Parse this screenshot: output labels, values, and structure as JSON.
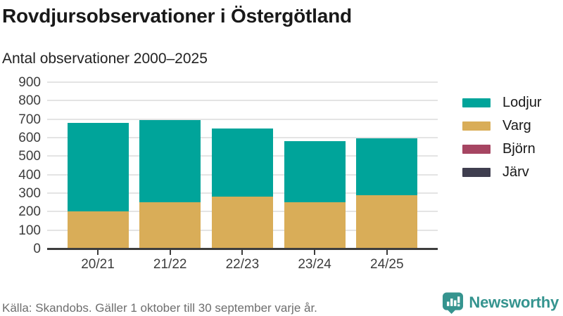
{
  "title": "Rovdjursobservationer i Östergötland",
  "subtitle": "Antal observationer 2000–2025",
  "footer": {
    "source": "Källa: Skandobs. Gäller 1 oktober till 30 september varje år."
  },
  "branding": {
    "name": "Newsworthy",
    "icon": "newsworthy-speech-bubble-bar-chart-icon",
    "color": "#35948f"
  },
  "colors": {
    "grid": "#e4e4e4",
    "axis": "#3d3d3d",
    "text_dark": "#191919",
    "text_muted": "#6e6e6e"
  },
  "chart_data": {
    "type": "bar",
    "stacked": true,
    "title": "Rovdjursobservationer i Östergötland",
    "subtitle": "Antal observationer 2000–2025",
    "categories": [
      "20/21",
      "21/22",
      "22/23",
      "23/24",
      "24/25"
    ],
    "series": [
      {
        "name": "Lodjur",
        "color": "#00a49a",
        "values": [
          480,
          443,
          368,
          330,
          308
        ]
      },
      {
        "name": "Varg",
        "color": "#d9ad58",
        "values": [
          200,
          252,
          280,
          250,
          287
        ]
      },
      {
        "name": "Björn",
        "color": "#a64562",
        "values": [
          0,
          0,
          0,
          0,
          0
        ]
      },
      {
        "name": "Järv",
        "color": "#3f3e4f",
        "values": [
          0,
          0,
          0,
          0,
          0
        ]
      }
    ],
    "stack_order_bottom_to_top": [
      "Järv",
      "Björn",
      "Varg",
      "Lodjur"
    ],
    "totals": [
      680,
      695,
      648,
      580,
      595
    ],
    "xlabel": "",
    "ylabel": "",
    "ylim": [
      0,
      900
    ],
    "yticks": [
      0,
      100,
      200,
      300,
      400,
      500,
      600,
      700,
      800,
      900
    ],
    "grid": true,
    "legend_position": "right"
  }
}
